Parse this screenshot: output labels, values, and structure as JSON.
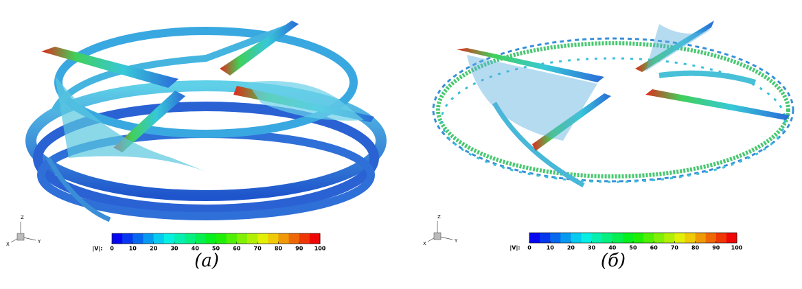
{
  "panels": [
    {
      "caption": "(a)",
      "colorbar": {
        "label": "|V|:",
        "range": [
          0,
          100
        ],
        "ticks": [
          0,
          10,
          20,
          30,
          40,
          50,
          60,
          70,
          80,
          90,
          100
        ]
      },
      "triad": {
        "z": "Z",
        "x": "X",
        "y": "Y"
      }
    },
    {
      "caption": "(б)",
      "colorbar": {
        "label": "|V|:",
        "range": [
          0,
          100
        ],
        "ticks": [
          0,
          10,
          20,
          30,
          40,
          50,
          60,
          70,
          80,
          90,
          100
        ]
      },
      "triad": {
        "z": "Z",
        "x": "X",
        "y": "Y"
      }
    }
  ]
}
